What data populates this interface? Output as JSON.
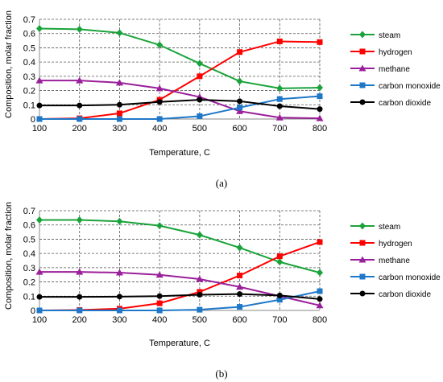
{
  "chart_data": [
    {
      "type": "line",
      "panel_label": "(a)",
      "xlabel": "Temperature, C",
      "ylabel": "Composition, molar fraction",
      "x": [
        100,
        200,
        300,
        400,
        500,
        600,
        700,
        800
      ],
      "xlim": [
        100,
        800
      ],
      "ylim": [
        0,
        0.7
      ],
      "yticks": [
        "0",
        "0.1",
        "0.2",
        "0.3",
        "0.4",
        "0.5",
        "0.6",
        "0.7"
      ],
      "grid": true,
      "legend_position": "right",
      "series": [
        {
          "name": "steam",
          "color": "#1aa33a",
          "marker": "diamond",
          "values": [
            0.635,
            0.63,
            0.605,
            0.52,
            0.39,
            0.265,
            0.215,
            0.22
          ]
        },
        {
          "name": "hydrogen",
          "color": "#ff0000",
          "marker": "square",
          "values": [
            0.0,
            0.005,
            0.04,
            0.135,
            0.3,
            0.47,
            0.545,
            0.54
          ]
        },
        {
          "name": "methane",
          "color": "#9a1f9a",
          "marker": "triangle",
          "values": [
            0.27,
            0.27,
            0.255,
            0.215,
            0.155,
            0.055,
            0.01,
            0.005
          ]
        },
        {
          "name": "carbon monoxide",
          "color": "#1f77c8",
          "marker": "square",
          "values": [
            0.0,
            0.0,
            0.0,
            0.0,
            0.02,
            0.08,
            0.14,
            0.16
          ]
        },
        {
          "name": "carbon dioxide",
          "color": "#000000",
          "marker": "circle",
          "values": [
            0.095,
            0.095,
            0.1,
            0.12,
            0.135,
            0.125,
            0.09,
            0.07
          ]
        }
      ]
    },
    {
      "type": "line",
      "panel_label": "(b)",
      "xlabel": "Temperature, C",
      "ylabel": "Composition, molar fraction",
      "x": [
        100,
        200,
        300,
        400,
        500,
        600,
        700,
        800
      ],
      "xlim": [
        100,
        800
      ],
      "ylim": [
        0,
        0.7
      ],
      "yticks": [
        "0",
        "0.1",
        "0.2",
        "0.3",
        "0.4",
        "0.5",
        "0.6",
        "0.7"
      ],
      "grid": true,
      "legend_position": "right",
      "series": [
        {
          "name": "steam",
          "color": "#1aa33a",
          "marker": "diamond",
          "values": [
            0.635,
            0.635,
            0.625,
            0.595,
            0.53,
            0.44,
            0.34,
            0.265
          ]
        },
        {
          "name": "hydrogen",
          "color": "#ff0000",
          "marker": "square",
          "values": [
            0.0,
            0.003,
            0.012,
            0.05,
            0.13,
            0.245,
            0.38,
            0.48
          ]
        },
        {
          "name": "methane",
          "color": "#9a1f9a",
          "marker": "triangle",
          "values": [
            0.27,
            0.27,
            0.265,
            0.25,
            0.22,
            0.165,
            0.1,
            0.035
          ]
        },
        {
          "name": "carbon monoxide",
          "color": "#1f77c8",
          "marker": "square",
          "values": [
            0.0,
            0.0,
            0.0,
            0.0,
            0.005,
            0.025,
            0.075,
            0.135
          ]
        },
        {
          "name": "carbon dioxide",
          "color": "#000000",
          "marker": "circle",
          "values": [
            0.095,
            0.095,
            0.097,
            0.1,
            0.11,
            0.115,
            0.105,
            0.08
          ]
        }
      ]
    }
  ]
}
